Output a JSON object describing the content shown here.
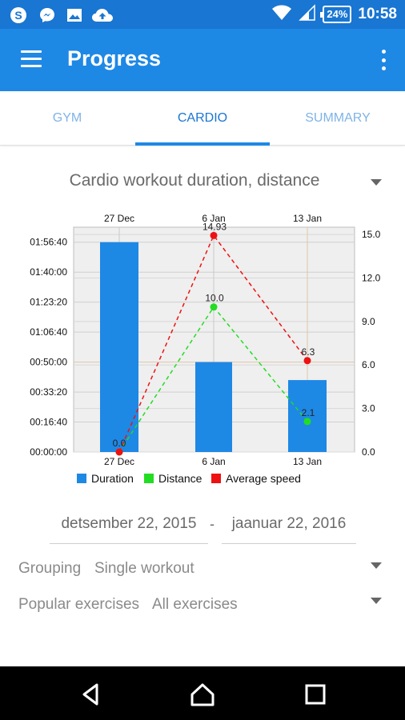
{
  "status_bar": {
    "icons": [
      "skype-icon",
      "messenger-icon",
      "image-icon",
      "cloud-upload-icon"
    ],
    "battery": "24%",
    "time": "10:58"
  },
  "app_bar": {
    "title": "Progress"
  },
  "tabs": [
    {
      "label": "GYM",
      "active": false
    },
    {
      "label": "CARDIO",
      "active": true
    },
    {
      "label": "SUMMARY",
      "active": false
    }
  ],
  "chart_selector": {
    "label": "Cardio workout duration, distance"
  },
  "chart_data": {
    "type": "bar",
    "categories": [
      "27 Dec",
      "6 Jan",
      "13 Jan"
    ],
    "top_axis_labels": [
      "27 Dec",
      "6 Jan",
      "13 Jan"
    ],
    "left_axis": {
      "tick_labels": [
        "00:00:00",
        "00:16:40",
        "00:33:20",
        "00:50:00",
        "01:06:40",
        "01:23:20",
        "01:40:00",
        "01:56:40"
      ],
      "ticks_seconds": [
        0,
        1000,
        2000,
        3000,
        4000,
        5000,
        6000,
        7000
      ],
      "range_seconds": [
        0,
        7500
      ]
    },
    "right_axis": {
      "tick_labels": [
        "0.0",
        "3.0",
        "6.0",
        "9.0",
        "12.0",
        "15.0"
      ],
      "ticks": [
        0,
        3,
        6,
        9,
        12,
        15
      ],
      "range": [
        0,
        15.5
      ]
    },
    "series": [
      {
        "name": "Duration",
        "kind": "bar",
        "axis": "left",
        "color": "#1e88e5",
        "values_seconds": [
          7000,
          3000,
          2400
        ]
      },
      {
        "name": "Distance",
        "kind": "line",
        "axis": "right",
        "color": "#22dd22",
        "values": [
          0.0,
          10.0,
          2.1
        ],
        "point_labels": [
          "0.0",
          "10.0",
          "2.1"
        ]
      },
      {
        "name": "Average speed",
        "kind": "line",
        "axis": "right",
        "color": "#ee1111",
        "values": [
          0.0,
          14.93,
          6.3
        ],
        "point_labels": [
          "0.0",
          "14.93",
          "6.3"
        ]
      }
    ],
    "grid": true,
    "legend": "bottom"
  },
  "date_range": {
    "start": "detsember 22, 2015",
    "separator": "-",
    "end": "jaanuar 22, 2016"
  },
  "grouping": {
    "label": "Grouping",
    "value": "Single workout"
  },
  "popular_exercises": {
    "label": "Popular exercises",
    "value": "All exercises"
  },
  "colors": {
    "status_bar": "#1976d2",
    "app_bar": "#1e88e5",
    "tab_active": "#1976d2",
    "tab_inactive": "#7fb3e6",
    "nav_bar": "#000000"
  }
}
